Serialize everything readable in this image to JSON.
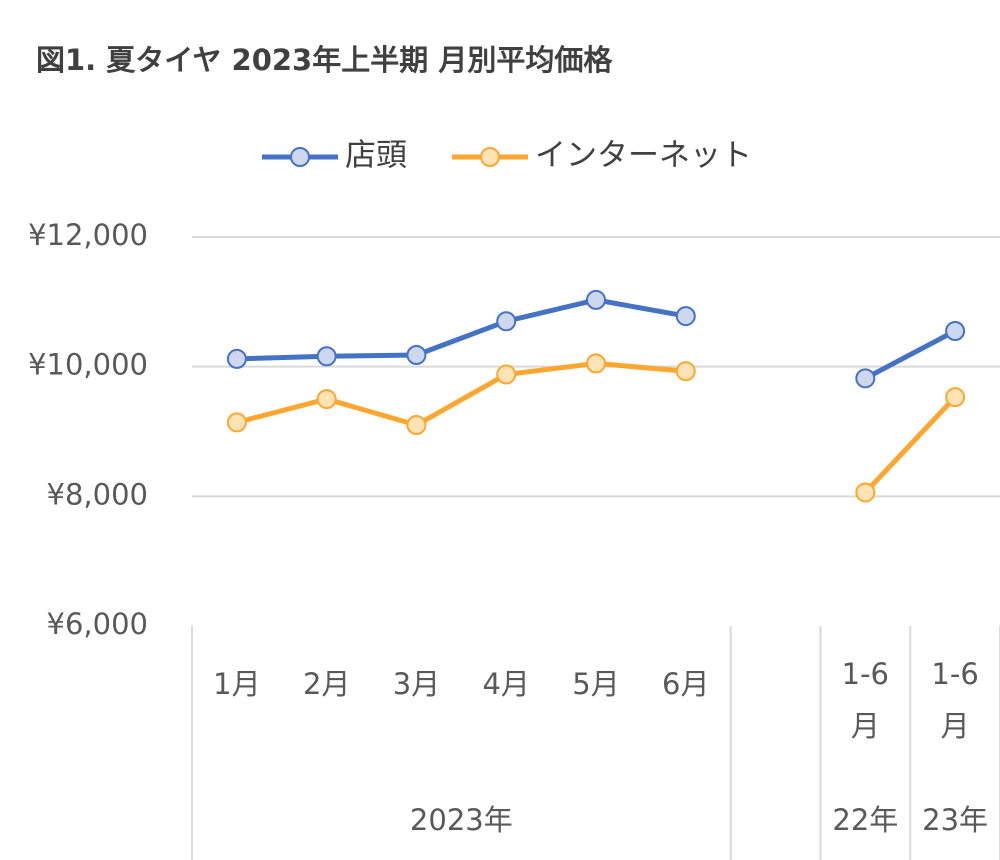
{
  "chart_data": {
    "type": "line",
    "title": "図1. 夏タイヤ 2023年上半期 月別平均価格",
    "categories": [
      "1月",
      "2月",
      "3月",
      "4月",
      "5月",
      "6月",
      null,
      "1-6月",
      "1-6月"
    ],
    "groups": [
      {
        "label": "2023年",
        "count": 6
      },
      {
        "label": null,
        "count": 1
      },
      {
        "label": "22年",
        "count": 1
      },
      {
        "label": "23年",
        "count": 1
      }
    ],
    "series": [
      {
        "name": "店頭",
        "color": "#4472c4",
        "marker_fill": "#cdd7ee",
        "values": [
          10120,
          10160,
          10180,
          10700,
          11030,
          10780,
          null,
          9820,
          10550
        ]
      },
      {
        "name": "インターネット",
        "color": "#ffa630",
        "marker_fill": "#fde3b5",
        "values": [
          9140,
          9500,
          9100,
          9880,
          10050,
          9930,
          null,
          8060,
          9530
        ]
      }
    ],
    "ylim": [
      6000,
      12000
    ],
    "yticks": [
      {
        "value": 6000,
        "label": "¥6,000"
      },
      {
        "value": 8000,
        "label": "¥8,000"
      },
      {
        "value": 10000,
        "label": "¥10,000"
      },
      {
        "value": 12000,
        "label": "¥12,000"
      }
    ],
    "grid": true,
    "legend": "top"
  }
}
